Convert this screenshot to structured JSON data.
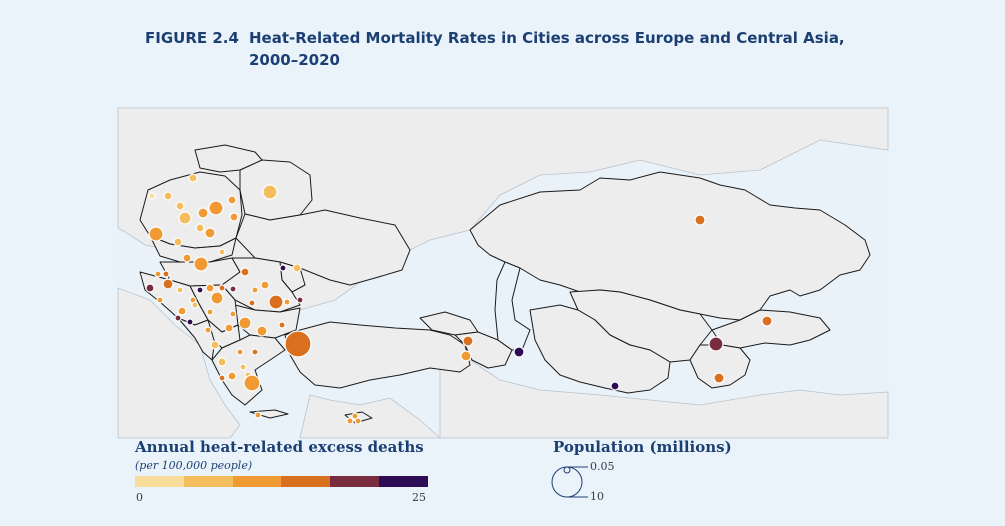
{
  "figure": {
    "label": "FIGURE 2.4",
    "title_line1": "Heat-Related Mortality Rates in Cities across Europe and Central Asia,",
    "title_line2": "2000–2020"
  },
  "legend_color": {
    "title": "Annual heat-related excess deaths",
    "subtitle": "(per 100,000 people)",
    "min_label": "0",
    "max_label": "25",
    "colors": [
      "#f7dc9a",
      "#f4bd5e",
      "#ef9a32",
      "#d9701f",
      "#7a2c3f",
      "#2e0b55"
    ]
  },
  "legend_size": {
    "title": "Population (millions)",
    "small_label": "0.05",
    "large_label": "10"
  },
  "colors": {
    "background": "#eaf3fa",
    "land": "#ededed",
    "border": "#1a1a1a",
    "title": "#1c3f73"
  }
}
